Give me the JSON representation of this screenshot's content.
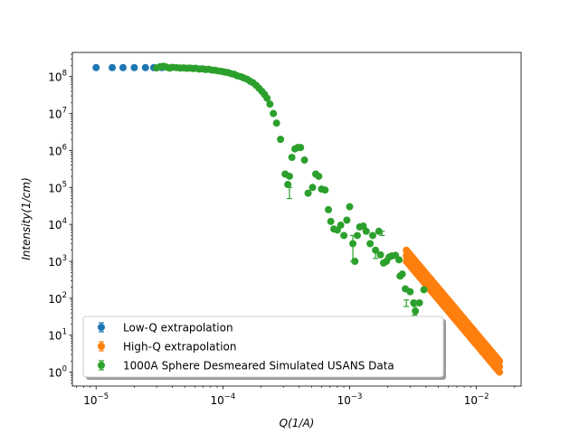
{
  "chart_data": {
    "type": "scatter",
    "title": "",
    "xlabel": "Q(1/A)",
    "ylabel": "Intensity(1/cm)",
    "xscale": "log",
    "yscale": "log",
    "xlim": [
      6.5e-06,
      0.0225
    ],
    "ylim": [
      0.42,
      450000000.0
    ],
    "x_ticks": [
      {
        "value": 1e-05,
        "base": "10",
        "exp": "−5"
      },
      {
        "value": 0.0001,
        "base": "10",
        "exp": "−4"
      },
      {
        "value": 0.001,
        "base": "10",
        "exp": "−3"
      },
      {
        "value": 0.01,
        "base": "10",
        "exp": "−2"
      }
    ],
    "y_ticks": [
      {
        "value": 1,
        "base": "10",
        "exp": "0"
      },
      {
        "value": 10,
        "base": "10",
        "exp": "1"
      },
      {
        "value": 100,
        "base": "10",
        "exp": "2"
      },
      {
        "value": 1000,
        "base": "10",
        "exp": "3"
      },
      {
        "value": 10000,
        "base": "10",
        "exp": "4"
      },
      {
        "value": 100000,
        "base": "10",
        "exp": "5"
      },
      {
        "value": 1000000,
        "base": "10",
        "exp": "6"
      },
      {
        "value": 10000000,
        "base": "10",
        "exp": "7"
      },
      {
        "value": 100000000,
        "base": "10",
        "exp": "8"
      }
    ],
    "grid": false,
    "legend_position": "lower-left",
    "series": [
      {
        "name": "Low-Q extrapolation",
        "color": "#1f77b4",
        "points": [
          [
            1e-05,
            175000000.0
          ],
          [
            1.34e-05,
            175000000.0
          ],
          [
            1.63e-05,
            175000000.0
          ],
          [
            2e-05,
            175000000.0
          ],
          [
            2.45e-05,
            175000000.0
          ],
          [
            2.85e-05,
            175000000.0
          ],
          [
            3.3e-05,
            175000000.0
          ]
        ]
      },
      {
        "name": "High-Q extrapolation",
        "color": "#ff7f0e",
        "band": {
          "x_start": 0.0028,
          "x_end": 0.0152,
          "n": 60,
          "upper_start": 2000,
          "upper_end": 2.0,
          "lower_start": 1000,
          "lower_end": 1.0
        }
      },
      {
        "name": "1000A Sphere Desmeared Simulated USANS Data",
        "color": "#2ca02c",
        "points": [
          [
            3e-05,
            172000000.0
          ],
          [
            3.2e-05,
            185000000.0
          ],
          [
            3.4e-05,
            190000000.0
          ],
          [
            3.6e-05,
            180000000.0
          ],
          [
            3.8e-05,
            170000000.0
          ],
          [
            4e-05,
            178000000.0
          ],
          [
            4.3e-05,
            175000000.0
          ],
          [
            4.6e-05,
            170000000.0
          ],
          [
            4.9e-05,
            172000000.0
          ],
          [
            5.2e-05,
            168000000.0
          ],
          [
            5.5e-05,
            170000000.0
          ],
          [
            5.8e-05,
            165000000.0
          ],
          [
            6.1e-05,
            168000000.0
          ],
          [
            6.5e-05,
            160000000.0
          ],
          [
            6.9e-05,
            162000000.0
          ],
          [
            7.3e-05,
            155000000.0
          ],
          [
            7.7e-05,
            158000000.0
          ],
          [
            8.2e-05,
            150000000.0
          ],
          [
            8.7e-05,
            148000000.0
          ],
          [
            9.2e-05,
            142000000.0
          ],
          [
            9.8e-05,
            138000000.0
          ],
          [
            0.000104,
            132000000.0
          ],
          [
            0.00011,
            128000000.0
          ],
          [
            0.000116,
            120000000.0
          ],
          [
            0.000123,
            115000000.0
          ],
          [
            0.00013,
            105000000.0
          ],
          [
            0.000138,
            100000000.0
          ],
          [
            0.000146,
            92000000.0
          ],
          [
            0.000155,
            85000000.0
          ],
          [
            0.000164,
            75000000.0
          ],
          [
            0.000173,
            68000000.0
          ],
          [
            0.000183,
            58000000.0
          ],
          [
            0.000193,
            48000000.0
          ],
          [
            0.000203,
            40000000.0
          ],
          [
            0.000213,
            33000000.0
          ],
          [
            0.000223,
            26000000.0
          ],
          [
            0.000235,
            18000000.0
          ],
          [
            0.00025,
            10000000.0
          ],
          [
            0.000265,
            5500000.0
          ],
          [
            0.000285,
            2000000.0
          ],
          [
            0.00031,
            230000.0
          ],
          [
            0.000325,
            120000.0
          ],
          [
            0.000335,
            200000.0
          ],
          [
            0.00035,
            650000.0
          ],
          [
            0.00037,
            1100000.0
          ],
          [
            0.00039,
            1200000.0
          ],
          [
            0.00041,
            1200000.0
          ],
          [
            0.00044,
            550000.0
          ],
          [
            0.00047,
            70000.0
          ],
          [
            0.00051,
            100000.0
          ],
          [
            0.00054,
            230000.0
          ],
          [
            0.00057,
            200000.0
          ],
          [
            0.0006,
            90000.0
          ],
          [
            0.00064,
            85000.0
          ],
          [
            0.00068,
            25000.0
          ],
          [
            0.00071,
            12000.0
          ],
          [
            0.00075,
            7500.0
          ],
          [
            0.0008,
            7000.0
          ],
          [
            0.00085,
            9500.0
          ],
          [
            0.0009,
            5000.0
          ],
          [
            0.00095,
            13000.0
          ],
          [
            0.001,
            30000.0
          ],
          [
            0.00106,
            3000.0
          ],
          [
            0.0011,
            1000.0
          ],
          [
            0.00115,
            5000.0
          ],
          [
            0.0012,
            8500.0
          ],
          [
            0.00128,
            9000.0
          ],
          [
            0.00135,
            6500.0
          ],
          [
            0.00145,
            3000.0
          ],
          [
            0.00152,
            5000.0
          ],
          [
            0.0016,
            2000.0
          ],
          [
            0.0017,
            6500.0
          ],
          [
            0.00175,
            1500.0
          ],
          [
            0.00185,
            900
          ],
          [
            0.00195,
            1000.0
          ],
          [
            0.00205,
            1300.0
          ],
          [
            0.00215,
            1400.0
          ],
          [
            0.0023,
            1450.0
          ],
          [
            0.00245,
            1100.0
          ],
          [
            0.0025,
            400
          ],
          [
            0.0026,
            450
          ],
          [
            0.00275,
            180
          ],
          [
            0.003,
            150
          ],
          [
            0.0032,
            75
          ],
          [
            0.0033,
            45
          ],
          [
            0.00355,
            75
          ],
          [
            0.00385,
            170
          ]
        ],
        "error_bars": [
          [
            0.000335,
            50000.0,
            100000.0
          ],
          [
            0.00106,
            1000.0,
            5000.0
          ],
          [
            0.0016,
            1200.0,
            2200.0
          ],
          [
            0.0018,
            5000.0,
            6500.0
          ],
          [
            0.002,
            1100.0,
            1200.0
          ],
          [
            0.0028,
            60,
            90
          ],
          [
            0.00325,
            35,
            60
          ]
        ]
      }
    ]
  }
}
